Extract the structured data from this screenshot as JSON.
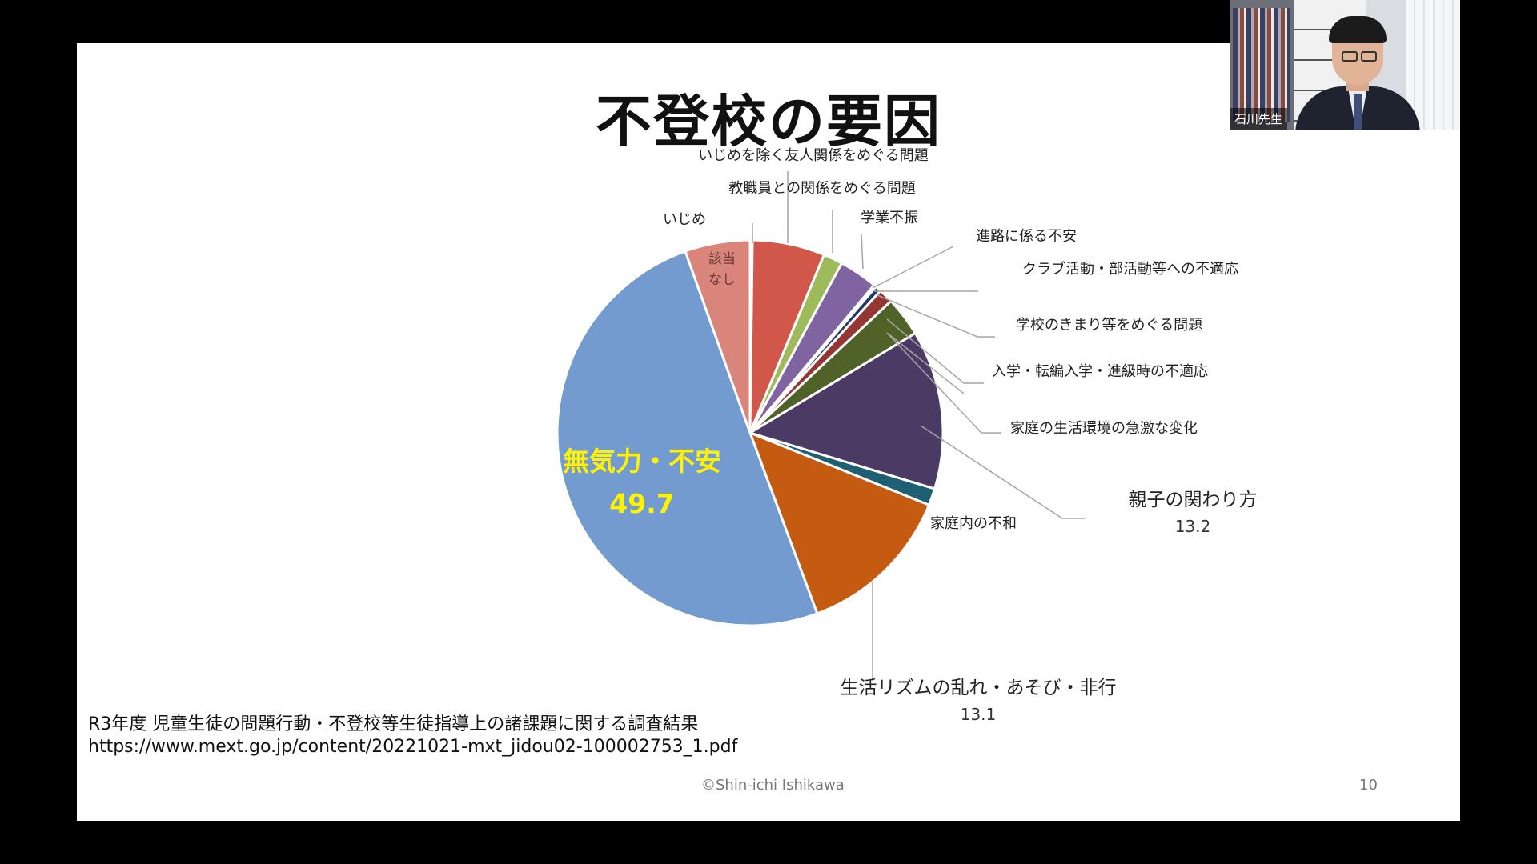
{
  "slide": {
    "title": "不登校の要因",
    "source_line1": "R3年度 児童生徒の問題行動・不登校等生徒指導上の諸課題に関する調査結果",
    "source_line2": "https://www.mext.go.jp/content/20221021-mxt_jidou02-100002753_1.pdf",
    "copyright": "©Shin-ichi Ishikawa",
    "page_number": "10"
  },
  "webcam": {
    "participant_name": "石川先生"
  },
  "chart_data": {
    "type": "pie",
    "start": "12 o'clock",
    "direction": "clockwise",
    "slices": [
      {
        "label": "いじめ",
        "value": 0.2,
        "color": "#d9d0cf"
      },
      {
        "label": "いじめを除く友人関係をめぐる問題",
        "value": 6.0,
        "color": "#d0574a"
      },
      {
        "label": "教職員との関係をめぐる問題",
        "value": 1.6,
        "color": "#9dbb5a"
      },
      {
        "label": "学業不振",
        "value": 3.2,
        "color": "#8064a2"
      },
      {
        "label": "進路に係る不安",
        "value": 0.2,
        "color": "#31859c"
      },
      {
        "label": "クラブ活動・部活動等への不適応",
        "value": 0.5,
        "color": "#1f3864"
      },
      {
        "label": "学校のきまり等をめぐる問題",
        "value": 1.2,
        "color": "#943634"
      },
      {
        "label": "入学・転編入学・進級時の不適応",
        "value": 3.3,
        "color": "#4f6228"
      },
      {
        "label": "家庭の生活環境の急激な変化",
        "value": 0.0,
        "color": "#5c4a72"
      },
      {
        "label": "親子の関わり方",
        "value": 13.2,
        "color": "#4b3a63"
      },
      {
        "label": "家庭内の不和",
        "value": 1.4,
        "color": "#1e5f73"
      },
      {
        "label": "生活リズムの乱れ・あそび・非行",
        "value": 13.1,
        "color": "#c55a11"
      },
      {
        "label": "無気力・不安",
        "value": 49.7,
        "color": "#739bcf"
      },
      {
        "label": "該当なし",
        "value": 5.4,
        "color": "#da857b"
      }
    ],
    "data_labels": {
      "親子の関わり方": "13.2",
      "生活リズムの乱れ・あそび・非行": "13.1",
      "無気力・不安": "49.7"
    },
    "inner_labels": {
      "無気力・不安": "無気力・不安",
      "該当なし": "該当\nなし"
    }
  }
}
